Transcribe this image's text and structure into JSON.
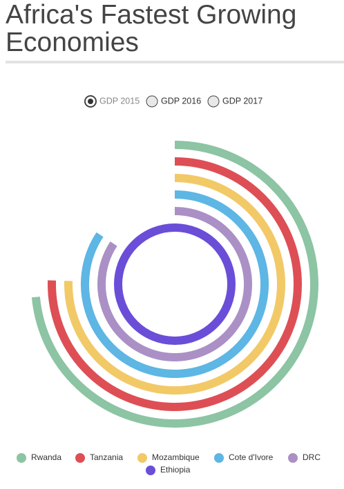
{
  "chart_data": {
    "type": "radial-bar",
    "title": "Africa's Fastest Growing Economies",
    "options": [
      "GDP 2015",
      "GDP 2016",
      "GDP 2017"
    ],
    "selected": 0,
    "series": [
      {
        "name": "Rwanda",
        "color": "#8cc4a4",
        "value": 7.5
      },
      {
        "name": "Tanzania",
        "color": "#dd4f55",
        "value": 7.7
      },
      {
        "name": "Mozambique",
        "color": "#f2c967",
        "value": 7.7
      },
      {
        "name": "Cote d'Ivore",
        "color": "#5db6e4",
        "value": 8.6
      },
      {
        "name": "DRC",
        "color": "#ab90c6",
        "value": 8.6
      },
      {
        "name": "Ethiopia",
        "color": "#6a4ed8",
        "value": 10.2
      }
    ]
  }
}
